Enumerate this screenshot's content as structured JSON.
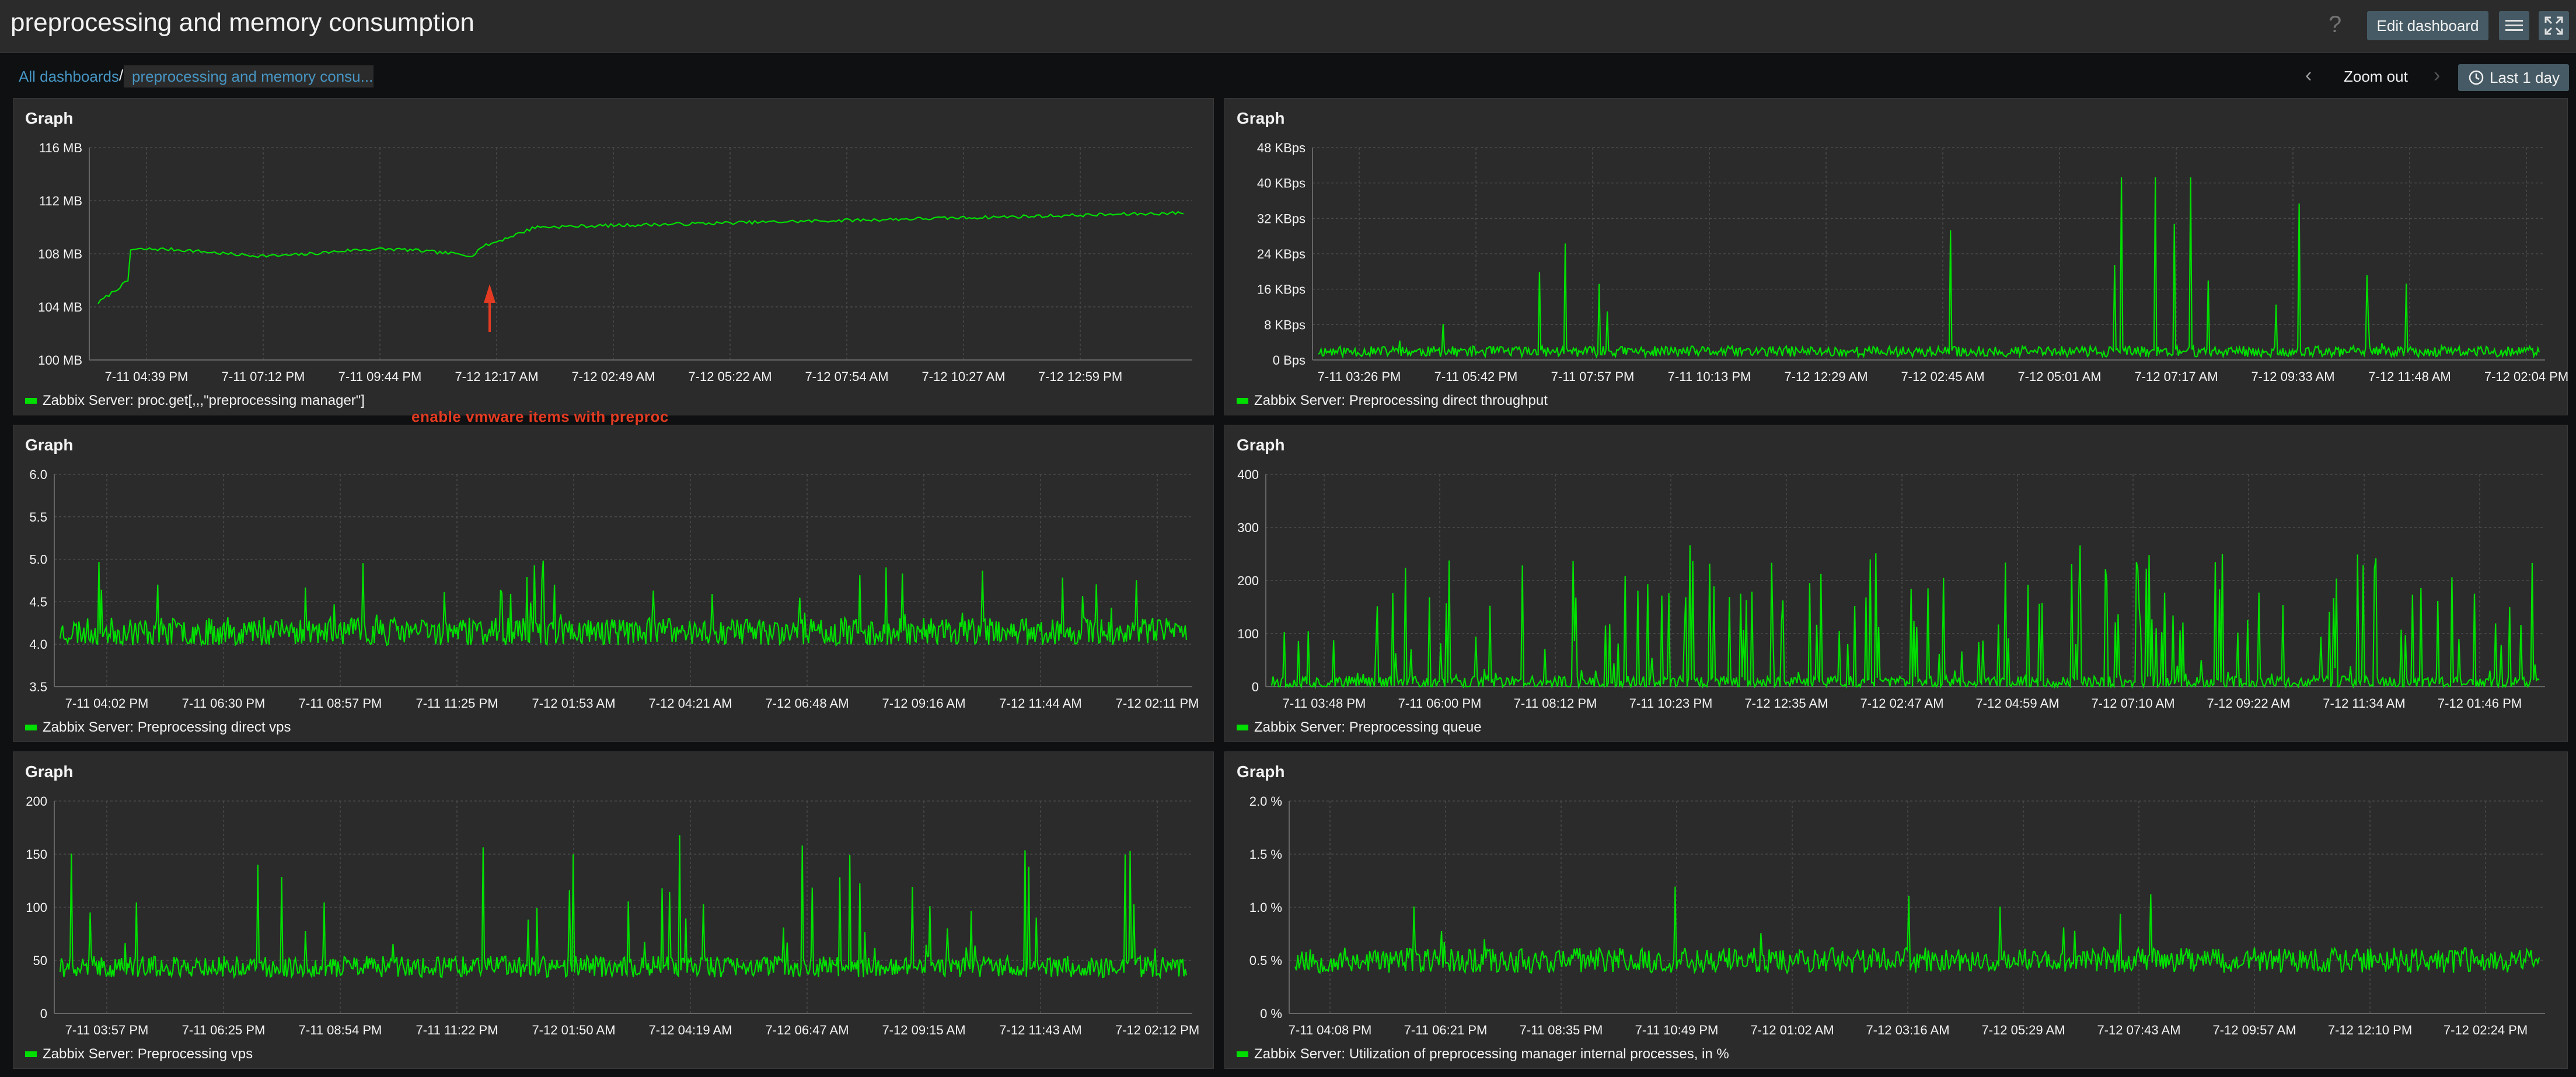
{
  "header": {
    "title": "preprocessing and memory consumption",
    "edit_label": "Edit dashboard",
    "help_icon": "question-icon",
    "menu_icon": "hamburger-icon",
    "fullscreen_icon": "fullscreen-icon"
  },
  "breadcrumb": {
    "all_label": "All dashboards",
    "separator": "/",
    "current_label": "preprocessing and memory consu..."
  },
  "timecontrols": {
    "zoom_out_label": "Zoom out",
    "time_label": "Last 1 day",
    "clock_icon": "clock-icon"
  },
  "colors": {
    "series": "#00e000",
    "annotation": "#e33b22",
    "link": "#4796c4"
  },
  "widgets": [
    {
      "title": "Graph",
      "legend": "Zabbix Server: proc.get[,,,\"preprocessing manager\"]",
      "yticks": [
        "116 MB",
        "112 MB",
        "108 MB",
        "104 MB",
        "100 MB"
      ],
      "xticks": [
        "7-11 04:39 PM",
        "7-11 07:12 PM",
        "7-11 09:44 PM",
        "7-12 12:17 AM",
        "7-12 02:49 AM",
        "7-12 05:22 AM",
        "7-12 07:54 AM",
        "7-12 10:27 AM",
        "7-12 12:59 PM"
      ],
      "annotation": "enable vmware items with preproc"
    },
    {
      "title": "Graph",
      "legend": "Zabbix Server: Preprocessing direct throughput",
      "yticks": [
        "48 KBps",
        "40 KBps",
        "32 KBps",
        "24 KBps",
        "16 KBps",
        "8 KBps",
        "0 Bps"
      ],
      "xticks": [
        "7-11 03:26 PM",
        "7-11 05:42 PM",
        "7-11 07:57 PM",
        "7-11 10:13 PM",
        "7-12 12:29 AM",
        "7-12 02:45 AM",
        "7-12 05:01 AM",
        "7-12 07:17 AM",
        "7-12 09:33 AM",
        "7-12 11:48 AM",
        "7-12 02:04 PM"
      ]
    },
    {
      "title": "Graph",
      "legend": "Zabbix Server: Preprocessing direct vps",
      "yticks": [
        "6.0",
        "5.5",
        "5.0",
        "4.5",
        "4.0",
        "3.5"
      ],
      "xticks": [
        "7-11 04:02 PM",
        "7-11 06:30 PM",
        "7-11 08:57 PM",
        "7-11 11:25 PM",
        "7-12 01:53 AM",
        "7-12 04:21 AM",
        "7-12 06:48 AM",
        "7-12 09:16 AM",
        "7-12 11:44 AM",
        "7-12 02:11 PM"
      ]
    },
    {
      "title": "Graph",
      "legend": "Zabbix Server: Preprocessing queue",
      "yticks": [
        "400",
        "300",
        "200",
        "100",
        "0"
      ],
      "xticks": [
        "7-11 03:48 PM",
        "7-11 06:00 PM",
        "7-11 08:12 PM",
        "7-11 10:23 PM",
        "7-12 12:35 AM",
        "7-12 02:47 AM",
        "7-12 04:59 AM",
        "7-12 07:10 AM",
        "7-12 09:22 AM",
        "7-12 11:34 AM",
        "7-12 01:46 PM"
      ]
    },
    {
      "title": "Graph",
      "legend": "Zabbix Server: Preprocessing vps",
      "yticks": [
        "200",
        "150",
        "100",
        "50",
        "0"
      ],
      "xticks": [
        "7-11 03:57 PM",
        "7-11 06:25 PM",
        "7-11 08:54 PM",
        "7-11 11:22 PM",
        "7-12 01:50 AM",
        "7-12 04:19 AM",
        "7-12 06:47 AM",
        "7-12 09:15 AM",
        "7-12 11:43 AM",
        "7-12 02:12 PM"
      ]
    },
    {
      "title": "Graph",
      "legend": "Zabbix Server: Utilization of preprocessing manager internal processes, in %",
      "yticks": [
        "2.0 %",
        "1.5 %",
        "1.0 %",
        "0.5 %",
        "0 %"
      ],
      "xticks": [
        "7-11 04:08 PM",
        "7-11 06:21 PM",
        "7-11 08:35 PM",
        "7-11 10:49 PM",
        "7-12 01:02 AM",
        "7-12 03:16 AM",
        "7-12 05:29 AM",
        "7-12 07:43 AM",
        "7-12 09:57 AM",
        "7-12 12:10 PM",
        "7-12 02:24 PM"
      ]
    }
  ]
}
